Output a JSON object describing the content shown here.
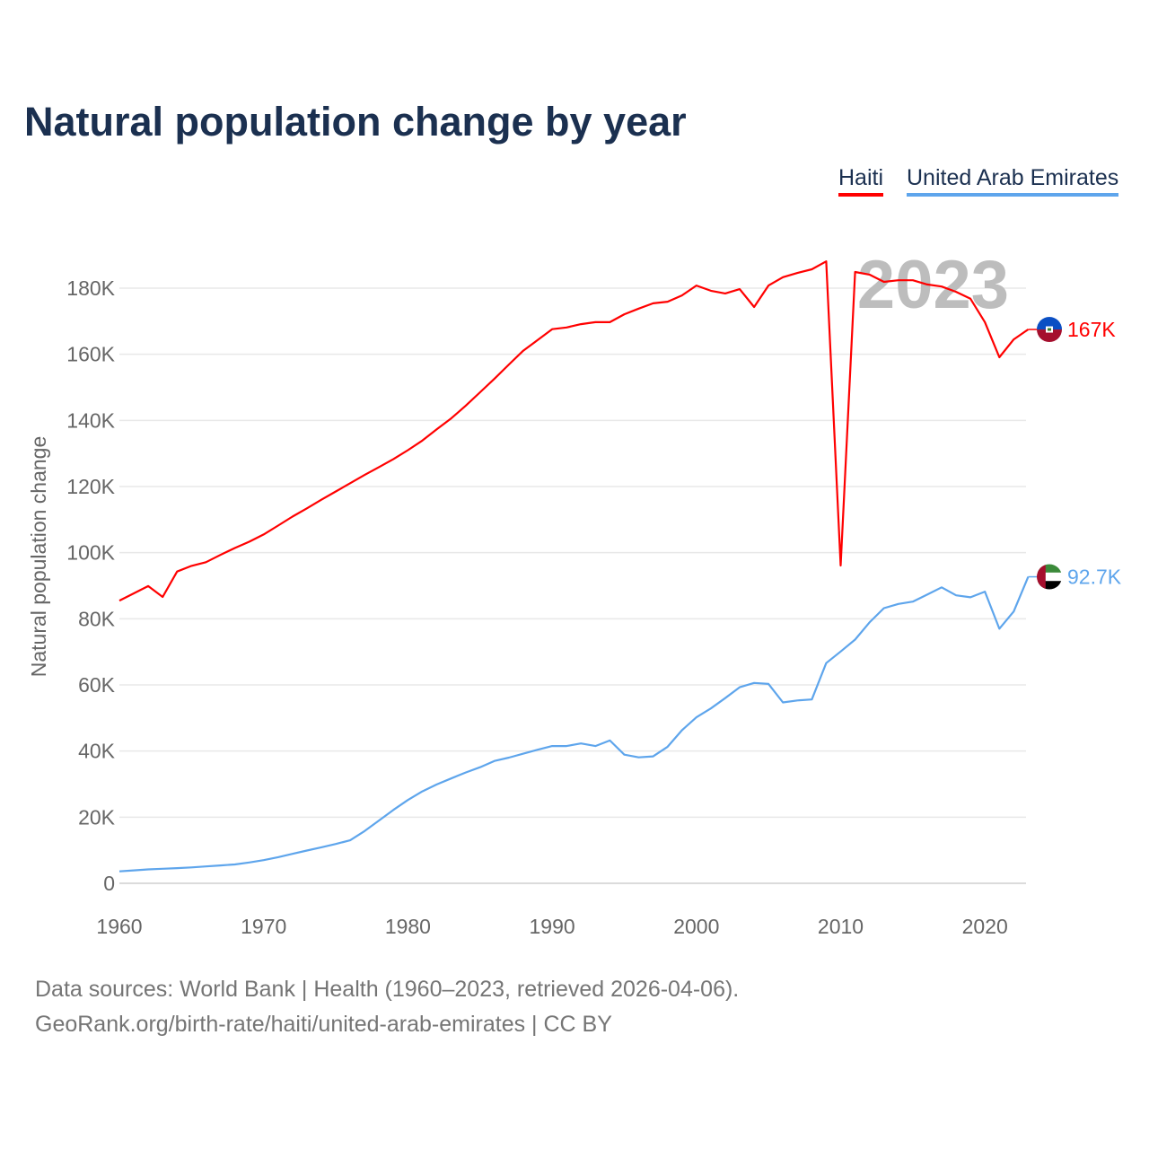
{
  "chart_data": {
    "type": "line",
    "title": "Natural population change by year",
    "xlabel": "",
    "ylabel": "Natural population change",
    "xlim": [
      1960,
      2023
    ],
    "ylim": [
      0,
      190000
    ],
    "grid": true,
    "legend_placement": "top-right",
    "year_watermark": "2023",
    "x_ticks": [
      1960,
      1970,
      1980,
      1990,
      2000,
      2010,
      2020
    ],
    "x_tick_labels": [
      "1960",
      "1970",
      "1980",
      "1990",
      "2000",
      "2010",
      "2020"
    ],
    "y_ticks": [
      0,
      20000,
      40000,
      60000,
      80000,
      100000,
      120000,
      140000,
      160000,
      180000
    ],
    "y_tick_labels": [
      "0",
      "20K",
      "40K",
      "60K",
      "80K",
      "100K",
      "120K",
      "140K",
      "160K",
      "180K"
    ],
    "x": [
      1960,
      1961,
      1962,
      1963,
      1964,
      1965,
      1966,
      1967,
      1968,
      1969,
      1970,
      1971,
      1972,
      1973,
      1974,
      1975,
      1976,
      1977,
      1978,
      1979,
      1980,
      1981,
      1982,
      1983,
      1984,
      1985,
      1986,
      1987,
      1988,
      1989,
      1990,
      1991,
      1992,
      1993,
      1994,
      1995,
      1996,
      1997,
      1998,
      1999,
      2000,
      2001,
      2002,
      2003,
      2004,
      2005,
      2006,
      2007,
      2008,
      2009,
      2010,
      2011,
      2012,
      2013,
      2014,
      2015,
      2016,
      2017,
      2018,
      2019,
      2020,
      2021,
      2022,
      2023
    ],
    "series": [
      {
        "name": "Haiti",
        "color": "#ff0000",
        "end_label": "167K",
        "flag": "haiti-flag",
        "values": [
          85500,
          87700,
          89900,
          86600,
          94300,
          96000,
          97100,
          99300,
          101400,
          103300,
          105500,
          108200,
          110900,
          113400,
          116000,
          118500,
          121000,
          123500,
          125900,
          128300,
          131000,
          133900,
          137300,
          140600,
          144400,
          148500,
          152600,
          156900,
          161100,
          164300,
          167600,
          168100,
          169100,
          169700,
          169700,
          172100,
          173800,
          175400,
          175900,
          177800,
          180800,
          179200,
          178400,
          179700,
          174300,
          180800,
          183300,
          184600,
          185700,
          188100,
          96100,
          184900,
          184100,
          181900,
          182400,
          182400,
          181100,
          180500,
          178900,
          176800,
          169700,
          159100,
          164500,
          167500
        ]
      },
      {
        "name": "United Arab Emirates",
        "color": "#5ea5ec",
        "end_label": "92.7K",
        "flag": "uae-flag",
        "values": [
          3600,
          3900,
          4200,
          4400,
          4600,
          4800,
          5100,
          5400,
          5700,
          6300,
          7000,
          7900,
          8900,
          9900,
          10900,
          11900,
          13000,
          15800,
          19000,
          22200,
          25200,
          27800,
          29900,
          31700,
          33500,
          35100,
          37000,
          38000,
          39200,
          40400,
          41500,
          41500,
          42300,
          41500,
          43200,
          38900,
          38100,
          38400,
          41300,
          46300,
          50200,
          52900,
          56000,
          59300,
          60600,
          60300,
          54700,
          55300,
          55600,
          66600,
          70100,
          73700,
          78900,
          83200,
          84500,
          85200,
          87300,
          89500,
          87100,
          86500,
          88200,
          77000,
          82200,
          92700
        ]
      }
    ]
  },
  "footer": {
    "line1": "Data sources: World Bank | Health (1960–2023, retrieved 2026-04-06).",
    "line2": "GeoRank.org/birth-rate/haiti/united-arab-emirates | CC BY"
  }
}
